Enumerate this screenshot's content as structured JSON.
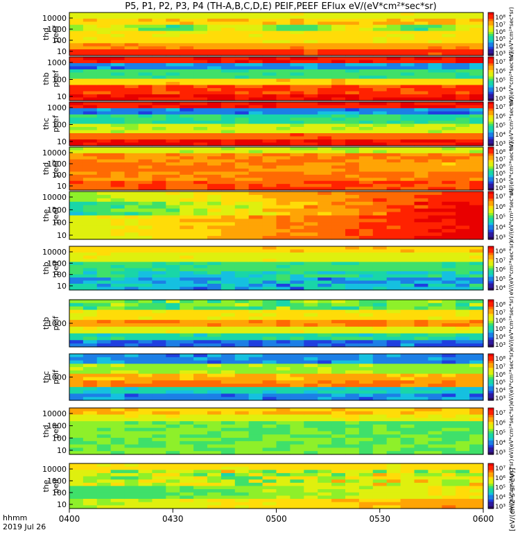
{
  "title": "P5, P1, P2, P3, P4 (TH-A,B,C,D,E) PEIF,PEEF EFlux eV/(eV*cm²*sec*sr)",
  "x_axis": {
    "ticks": [
      "0400",
      "0430",
      "0500",
      "0530",
      "0600"
    ],
    "corner_label_1": "hhmm",
    "corner_label_2": "2019 Jul 26"
  },
  "colorbar_unit_label": "[eV/(cm2-s-sr-eV)]",
  "chart_data": [
    {
      "type": "heatmap",
      "panel": "thd peef",
      "ylabel": "thd\npeef",
      "y_scale": "log",
      "y_ticks": [
        "10000",
        "1000",
        "100",
        "10"
      ],
      "colorbar": {
        "ticks": [
          "10⁸",
          "10⁷",
          "10⁶",
          "10⁵",
          "10⁴",
          "10³"
        ],
        "label": "eV/(eV*cm²*sec*sr)"
      }
    },
    {
      "type": "heatmap",
      "panel": "thb peef",
      "ylabel": "thb\npeef",
      "y_scale": "log",
      "y_ticks": [
        "1000",
        "100",
        "10"
      ],
      "colorbar": {
        "ticks": [
          "10⁷",
          "10⁶",
          "10⁵",
          "10⁴",
          "10³"
        ],
        "label": "eV/(eV*cm²*sec*sr)"
      }
    },
    {
      "type": "heatmap",
      "panel": "thc peef",
      "ylabel": "thc\npeef",
      "y_scale": "log",
      "y_ticks": [
        "1000",
        "100",
        "10"
      ],
      "colorbar": {
        "ticks": [
          "10⁷",
          "10⁶",
          "10⁵",
          "10⁴",
          "10³"
        ],
        "label": "eV/(eV*cm²*sec*sr)"
      }
    },
    {
      "type": "heatmap",
      "panel": "thd peef",
      "ylabel": "thd\npeef",
      "y_scale": "log",
      "y_ticks": [
        "10000",
        "1000",
        "100",
        "10"
      ],
      "colorbar": {
        "ticks": [
          "10⁸",
          "10⁷",
          "10⁶",
          "10⁵",
          "10⁴",
          "10³"
        ],
        "label": "eV/(eV*cm²*sec*sr)"
      }
    },
    {
      "type": "heatmap",
      "panel": "the peef",
      "ylabel": "the\npeef",
      "y_scale": "log",
      "y_ticks": [
        "10000",
        "1000",
        "100",
        "10"
      ],
      "colorbar": {
        "ticks": [
          "10⁷",
          "10⁶",
          "10⁵",
          "10⁴",
          "10³"
        ],
        "label": "eV/(eV*cm²*sec*sr)"
      }
    },
    {
      "type": "heatmap",
      "panel": "thb peif",
      "ylabel": "thb\npeif",
      "y_scale": "log",
      "y_ticks": [
        "10000",
        "1000",
        "100",
        "10"
      ],
      "colorbar": {
        "ticks": [
          "10⁸",
          "10⁷",
          "10⁶",
          "10⁵",
          "10⁴"
        ],
        "label": "eV/(eV*cm²*sec*sr)"
      }
    },
    {
      "type": "heatmap",
      "panel": "thb peif",
      "ylabel": "thb\npeif",
      "y_scale": "log",
      "y_ticks": [
        "1000"
      ],
      "colorbar": {
        "ticks": [
          "10⁸",
          "10⁷",
          "10⁶",
          "10⁵",
          "10⁴",
          "10³"
        ],
        "label": "eV/(eV*cm²*sec*sr)"
      }
    },
    {
      "type": "heatmap",
      "panel": "thc peif",
      "ylabel": "thc\npeif",
      "y_scale": "log",
      "y_ticks": [
        "1000"
      ],
      "colorbar": {
        "ticks": [
          "10⁸",
          "10⁷",
          "10⁶",
          "10⁵",
          "10⁴",
          "10³"
        ],
        "label": "eV/(eV*cm²*sec*sr)"
      }
    },
    {
      "type": "heatmap",
      "panel": "thd peif",
      "ylabel": "thd\npeif",
      "y_scale": "log",
      "y_ticks": [
        "10000",
        "1000",
        "100",
        "10"
      ],
      "colorbar": {
        "ticks": [
          "10⁷",
          "10⁶",
          "10⁵",
          "10⁴",
          "10³"
        ],
        "label": "eV/(eV*cm²*sec*sr)"
      }
    },
    {
      "type": "heatmap",
      "panel": "the peif",
      "ylabel": "the\npeif",
      "y_scale": "log",
      "y_ticks": [
        "10000",
        "1000",
        "100",
        "10"
      ],
      "colorbar": {
        "ticks": [
          "10⁷",
          "10⁶",
          "10⁵",
          "10⁴",
          "10³"
        ],
        "label": "eV/(eV*cm²*sec*sr)"
      }
    }
  ],
  "colors": {
    "rainbow": [
      "#2b0a5a",
      "#2f1a9e",
      "#1f3fe0",
      "#1c7fe6",
      "#15c0e0",
      "#19d6a8",
      "#3fe06a",
      "#8ef02a",
      "#dff00e",
      "#ffdc08",
      "#ffa405",
      "#ff6a03",
      "#ff2200",
      "#e80000"
    ]
  }
}
